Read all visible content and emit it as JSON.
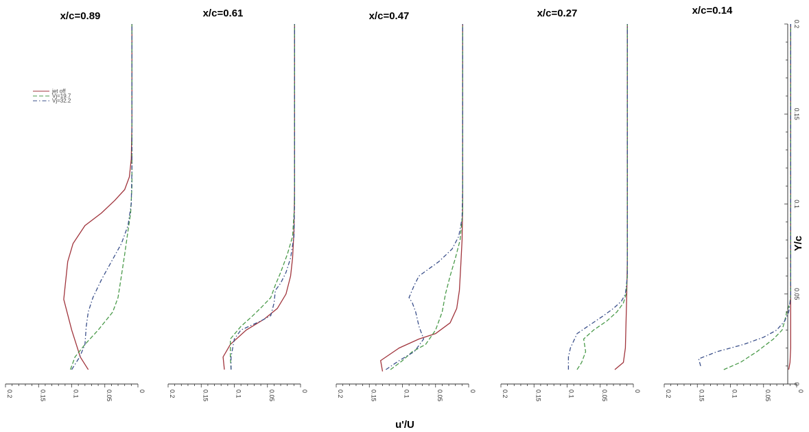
{
  "chart_data": {
    "type": "line",
    "xlabel": "u'/U",
    "ylabel": "Y/c",
    "xlim": [
      0.2,
      0
    ],
    "ylim": [
      0,
      0.2
    ],
    "x_ticks": [
      "0.2",
      "0.15",
      "0.1",
      "0.05",
      "0"
    ],
    "y_ticks": [
      "0",
      "0.05",
      "0.1",
      "0.15",
      "0.2"
    ],
    "legend": {
      "placement": "top-left",
      "entries": [
        "jet off",
        "Vj=19.7",
        "Vj=32.2"
      ]
    },
    "series_styles": [
      {
        "color": "#a0343c",
        "dash": "solid"
      },
      {
        "color": "#4a9a4a",
        "dash": "dashed"
      },
      {
        "color": "#3a4f8a",
        "dash": "dashdot"
      }
    ],
    "panels": [
      {
        "title": "x/c=0.89",
        "series": [
          {
            "name": "jet off",
            "points": [
              [
                0.075,
                0.008
              ],
              [
                0.087,
                0.015
              ],
              [
                0.1,
                0.03
              ],
              [
                0.112,
                0.047
              ],
              [
                0.106,
                0.068
              ],
              [
                0.098,
                0.078
              ],
              [
                0.08,
                0.088
              ],
              [
                0.055,
                0.095
              ],
              [
                0.035,
                0.102
              ],
              [
                0.02,
                0.108
              ],
              [
                0.013,
                0.115
              ],
              [
                0.01,
                0.125
              ],
              [
                0.009,
                0.145
              ],
              [
                0.009,
                0.2
              ]
            ]
          },
          {
            "name": "Vj=19.7",
            "points": [
              [
                0.102,
                0.008
              ],
              [
                0.095,
                0.015
              ],
              [
                0.08,
                0.022
              ],
              [
                0.06,
                0.03
              ],
              [
                0.038,
                0.04
              ],
              [
                0.03,
                0.048
              ],
              [
                0.025,
                0.06
              ],
              [
                0.02,
                0.072
              ],
              [
                0.015,
                0.085
              ],
              [
                0.011,
                0.095
              ],
              [
                0.009,
                0.11
              ],
              [
                0.009,
                0.2
              ]
            ]
          },
          {
            "name": "Vj=32.2",
            "points": [
              [
                0.1,
                0.008
              ],
              [
                0.088,
                0.015
              ],
              [
                0.08,
                0.022
              ],
              [
                0.078,
                0.032
              ],
              [
                0.075,
                0.04
              ],
              [
                0.068,
                0.048
              ],
              [
                0.055,
                0.058
              ],
              [
                0.04,
                0.068
              ],
              [
                0.025,
                0.078
              ],
              [
                0.015,
                0.088
              ],
              [
                0.01,
                0.1
              ],
              [
                0.009,
                0.12
              ],
              [
                0.009,
                0.2
              ]
            ]
          }
        ]
      },
      {
        "title": "x/c=0.61",
        "series": [
          {
            "name": "jet off",
            "points": [
              [
                0.115,
                0.008
              ],
              [
                0.117,
                0.015
              ],
              [
                0.106,
                0.022
              ],
              [
                0.082,
                0.03
              ],
              [
                0.055,
                0.036
              ],
              [
                0.035,
                0.042
              ],
              [
                0.022,
                0.05
              ],
              [
                0.015,
                0.06
              ],
              [
                0.012,
                0.07
              ],
              [
                0.01,
                0.085
              ],
              [
                0.009,
                0.11
              ],
              [
                0.009,
                0.2
              ]
            ]
          },
          {
            "name": "Vj=19.7",
            "points": [
              [
                0.105,
                0.008
              ],
              [
                0.106,
                0.015
              ],
              [
                0.106,
                0.025
              ],
              [
                0.09,
                0.032
              ],
              [
                0.072,
                0.038
              ],
              [
                0.058,
                0.043
              ],
              [
                0.045,
                0.048
              ],
              [
                0.038,
                0.055
              ],
              [
                0.03,
                0.062
              ],
              [
                0.02,
                0.072
              ],
              [
                0.012,
                0.082
              ],
              [
                0.009,
                0.1
              ],
              [
                0.009,
                0.2
              ]
            ]
          },
          {
            "name": "Vj=32.2",
            "points": [
              [
                0.105,
                0.008
              ],
              [
                0.105,
                0.015
              ],
              [
                0.1,
                0.025
              ],
              [
                0.09,
                0.03
              ],
              [
                0.06,
                0.035
              ],
              [
                0.045,
                0.038
              ],
              [
                0.04,
                0.045
              ],
              [
                0.038,
                0.052
              ],
              [
                0.03,
                0.056
              ],
              [
                0.022,
                0.062
              ],
              [
                0.015,
                0.07
              ],
              [
                0.01,
                0.082
              ],
              [
                0.009,
                0.1
              ],
              [
                0.009,
                0.2
              ]
            ]
          }
        ]
      },
      {
        "title": "x/c=0.47",
        "series": [
          {
            "name": "jet off",
            "points": [
              [
                0.13,
                0.007
              ],
              [
                0.133,
                0.013
              ],
              [
                0.105,
                0.02
              ],
              [
                0.075,
                0.025
              ],
              [
                0.05,
                0.028
              ],
              [
                0.028,
                0.034
              ],
              [
                0.018,
                0.042
              ],
              [
                0.014,
                0.052
              ],
              [
                0.012,
                0.065
              ],
              [
                0.01,
                0.08
              ],
              [
                0.009,
                0.1
              ],
              [
                0.009,
                0.2
              ]
            ]
          },
          {
            "name": "Vj=19.7",
            "points": [
              [
                0.118,
                0.008
              ],
              [
                0.1,
                0.013
              ],
              [
                0.085,
                0.018
              ],
              [
                0.065,
                0.022
              ],
              [
                0.05,
                0.03
              ],
              [
                0.04,
                0.04
              ],
              [
                0.035,
                0.05
              ],
              [
                0.028,
                0.06
              ],
              [
                0.02,
                0.07
              ],
              [
                0.013,
                0.08
              ],
              [
                0.009,
                0.095
              ],
              [
                0.009,
                0.2
              ]
            ]
          },
          {
            "name": "Vj=32.2",
            "points": [
              [
                0.125,
                0.008
              ],
              [
                0.105,
                0.013
              ],
              [
                0.082,
                0.018
              ],
              [
                0.068,
                0.025
              ],
              [
                0.075,
                0.032
              ],
              [
                0.08,
                0.04
              ],
              [
                0.085,
                0.045
              ],
              [
                0.09,
                0.048
              ],
              [
                0.082,
                0.055
              ],
              [
                0.075,
                0.06
              ],
              [
                0.045,
                0.068
              ],
              [
                0.025,
                0.075
              ],
              [
                0.015,
                0.082
              ],
              [
                0.01,
                0.092
              ],
              [
                0.009,
                0.11
              ],
              [
                0.009,
                0.2
              ]
            ]
          }
        ]
      },
      {
        "title": "x/c=0.27",
        "series": [
          {
            "name": "jet off",
            "points": [
              [
                0.028,
                0.008
              ],
              [
                0.015,
                0.012
              ],
              [
                0.012,
                0.02
              ],
              [
                0.011,
                0.035
              ],
              [
                0.01,
                0.05
              ],
              [
                0.009,
                0.07
              ],
              [
                0.009,
                0.2
              ]
            ]
          },
          {
            "name": "Vj=19.7",
            "points": [
              [
                0.085,
                0.008
              ],
              [
                0.078,
                0.012
              ],
              [
                0.072,
                0.018
              ],
              [
                0.075,
                0.025
              ],
              [
                0.06,
                0.03
              ],
              [
                0.04,
                0.035
              ],
              [
                0.025,
                0.04
              ],
              [
                0.015,
                0.045
              ],
              [
                0.011,
                0.05
              ],
              [
                0.009,
                0.06
              ],
              [
                0.009,
                0.2
              ]
            ]
          },
          {
            "name": "Vj=32.2",
            "points": [
              [
                0.098,
                0.008
              ],
              [
                0.098,
                0.015
              ],
              [
                0.095,
                0.02
              ],
              [
                0.085,
                0.028
              ],
              [
                0.065,
                0.033
              ],
              [
                0.045,
                0.038
              ],
              [
                0.03,
                0.042
              ],
              [
                0.018,
                0.046
              ],
              [
                0.012,
                0.05
              ],
              [
                0.009,
                0.06
              ],
              [
                0.009,
                0.2
              ]
            ]
          }
        ]
      },
      {
        "title": "x/c=0.14",
        "series": [
          {
            "name": "jet off",
            "points": [
              [
                0.012,
                0.008
              ],
              [
                0.01,
                0.012
              ],
              [
                0.009,
                0.02
              ],
              [
                0.009,
                0.2
              ]
            ]
          },
          {
            "name": "Vj=19.7",
            "points": [
              [
                0.11,
                0.008
              ],
              [
                0.085,
                0.012
              ],
              [
                0.06,
                0.018
              ],
              [
                0.035,
                0.025
              ],
              [
                0.022,
                0.03
              ],
              [
                0.018,
                0.035
              ],
              [
                0.015,
                0.04
              ],
              [
                0.01,
                0.045
              ],
              [
                0.009,
                0.05
              ],
              [
                0.009,
                0.2
              ]
            ]
          },
          {
            "name": "Vj=32.2",
            "points": [
              [
                0.145,
                0.01
              ],
              [
                0.148,
                0.014
              ],
              [
                0.12,
                0.018
              ],
              [
                0.08,
                0.022
              ],
              [
                0.05,
                0.026
              ],
              [
                0.03,
                0.03
              ],
              [
                0.018,
                0.035
              ],
              [
                0.012,
                0.04
              ],
              [
                0.009,
                0.048
              ],
              [
                0.009,
                0.2
              ]
            ]
          }
        ]
      }
    ]
  }
}
